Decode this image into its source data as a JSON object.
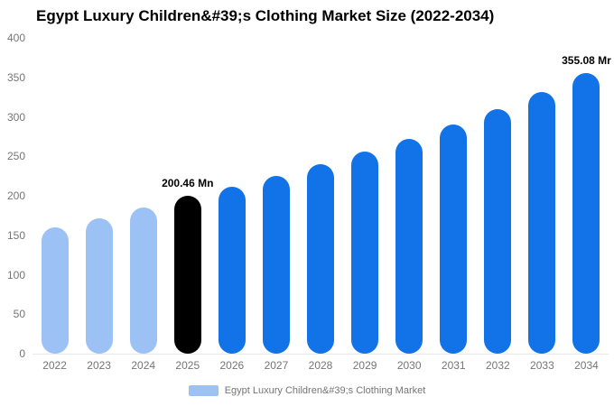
{
  "title": "Egypt Luxury Children&#39;s Clothing Market Size (2022-2034)",
  "legend": {
    "label": "Egypt Luxury Children&#39;s Clothing Market",
    "swatch_color": "#9cc2f5"
  },
  "colors": {
    "light_blue": "#9cc2f5",
    "bright_blue": "#1273e8",
    "highlight_black": "#000000",
    "axis_text": "#757575",
    "axis_line": "#e8e8e8",
    "background": "#ffffff"
  },
  "chart_data": {
    "type": "bar",
    "title": "Egypt Luxury Children&#39;s Clothing Market Size (2022-2034)",
    "categories": [
      "2022",
      "2023",
      "2024",
      "2025",
      "2026",
      "2027",
      "2028",
      "2029",
      "2030",
      "2031",
      "2032",
      "2033",
      "2034"
    ],
    "values": [
      160,
      172,
      185,
      200.46,
      211,
      225,
      240,
      256,
      272,
      290,
      310,
      331,
      355.08
    ],
    "bar_colors": [
      "#9cc2f5",
      "#9cc2f5",
      "#9cc2f5",
      "#000000",
      "#1273e8",
      "#1273e8",
      "#1273e8",
      "#1273e8",
      "#1273e8",
      "#1273e8",
      "#1273e8",
      "#1273e8",
      "#1273e8"
    ],
    "data_labels": {
      "3": "200.46 Mn",
      "12": "355.08 Mr"
    },
    "xlabel": "",
    "ylabel": "",
    "ylim": [
      0,
      400
    ],
    "yticks": [
      0,
      50,
      100,
      150,
      200,
      250,
      300,
      350,
      400
    ],
    "grid": false,
    "legend_position": "bottom",
    "legend_entries": [
      "Egypt Luxury Children&#39;s Clothing Market"
    ]
  }
}
